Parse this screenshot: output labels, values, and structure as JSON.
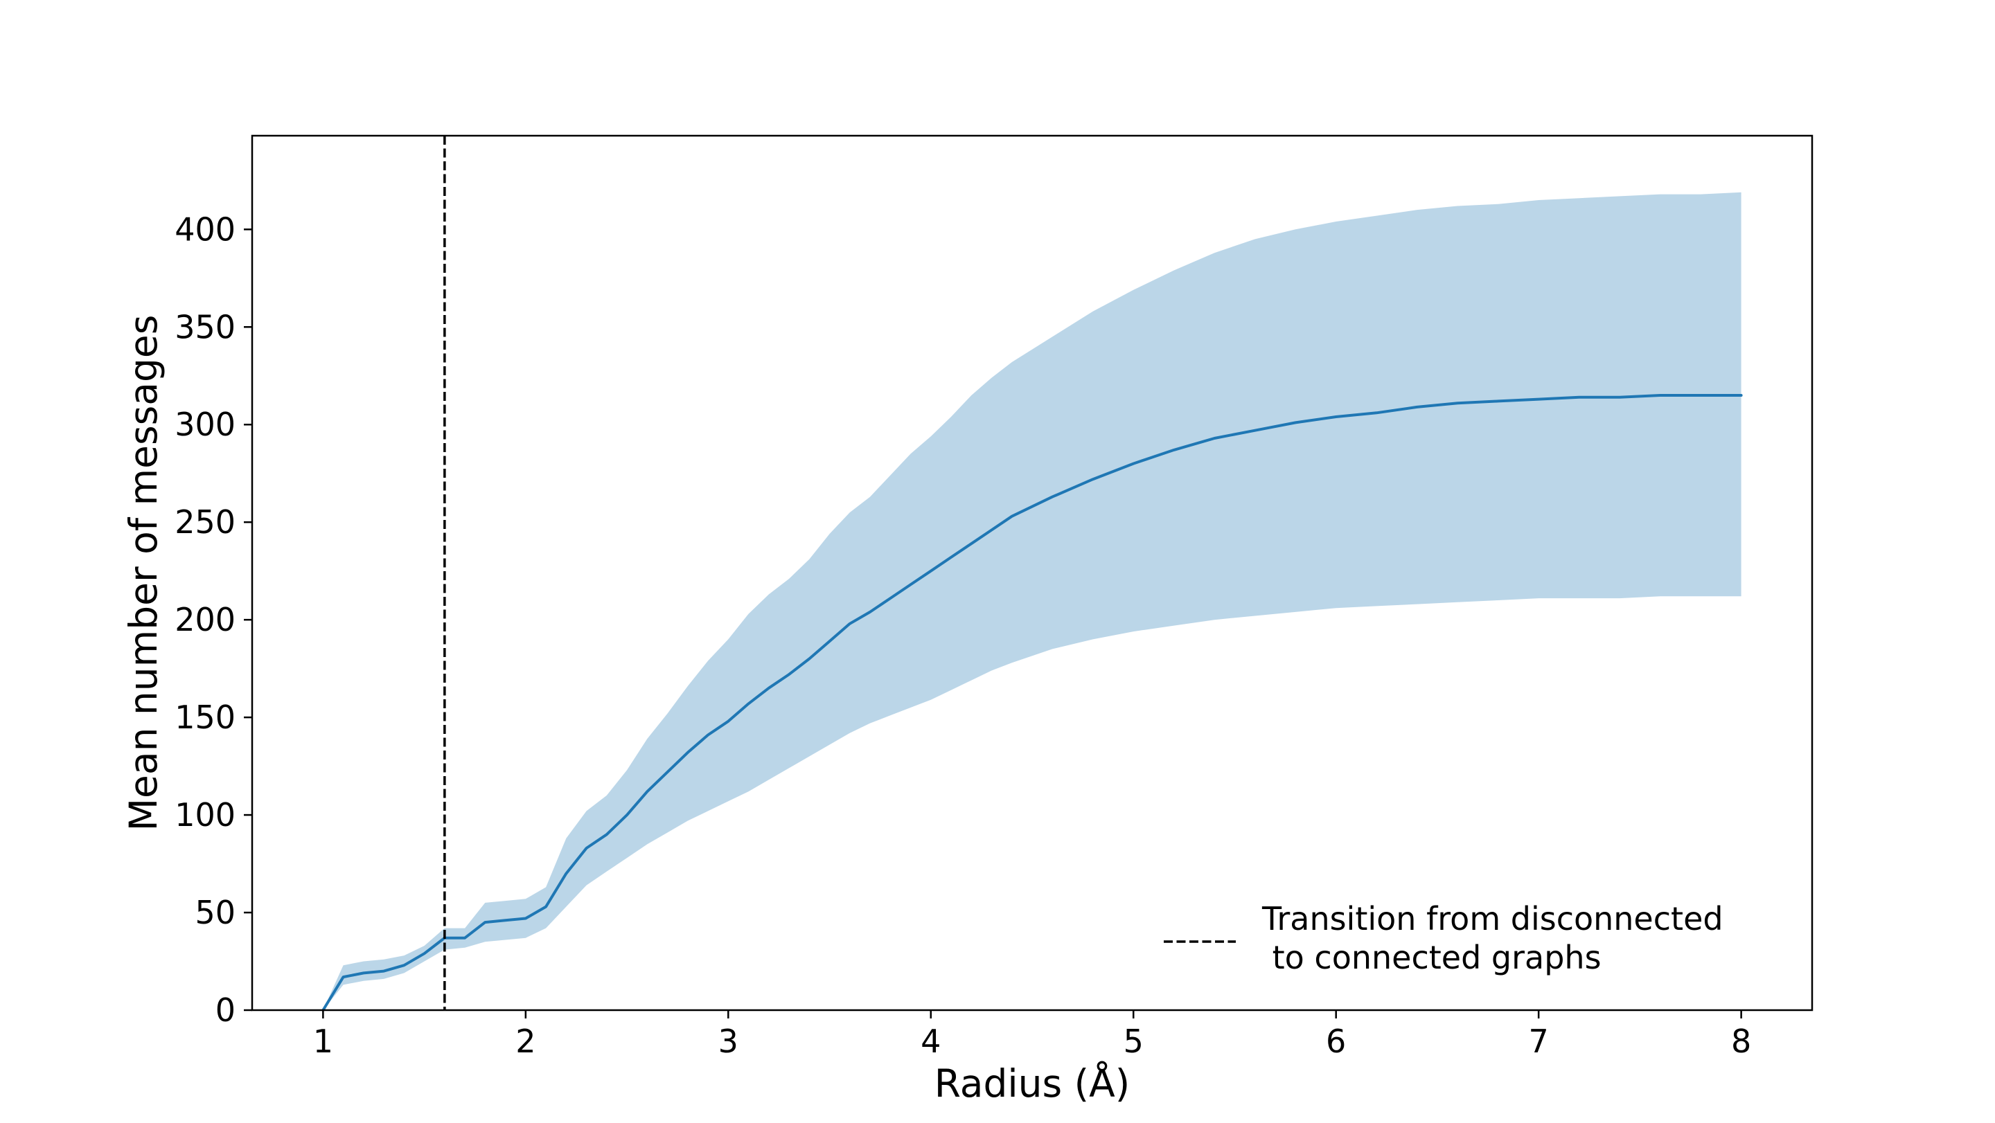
{
  "chart_data": {
    "type": "line",
    "title": "",
    "xlabel": "Radius (Å)",
    "ylabel": "Mean number of messages",
    "xlim": [
      0.65,
      8.35
    ],
    "ylim": [
      0,
      448
    ],
    "xticks": [
      1,
      2,
      3,
      4,
      5,
      6,
      7,
      8
    ],
    "yticks": [
      0,
      50,
      100,
      150,
      200,
      250,
      300,
      350,
      400
    ],
    "grid": false,
    "legend_position": "lower-right",
    "series": [
      {
        "x": [
          1.0,
          1.1,
          1.2,
          1.3,
          1.4,
          1.5,
          1.6,
          1.7,
          1.8,
          1.9,
          2.0,
          2.1,
          2.2,
          2.3,
          2.4,
          2.5,
          2.6,
          2.7,
          2.8,
          2.9,
          3.0,
          3.1,
          3.2,
          3.3,
          3.4,
          3.5,
          3.6,
          3.7,
          3.8,
          3.9,
          4.0,
          4.1,
          4.2,
          4.3,
          4.4,
          4.6,
          4.8,
          5.0,
          5.2,
          5.4,
          5.6,
          5.8,
          6.0,
          6.2,
          6.4,
          6.6,
          6.8,
          7.0,
          7.2,
          7.4,
          7.6,
          7.8,
          8.0
        ],
        "mean": [
          0,
          17,
          19,
          20,
          23,
          29,
          37,
          37,
          45,
          46,
          47,
          53,
          70,
          83,
          90,
          100,
          112,
          122,
          132,
          141,
          148,
          157,
          165,
          172,
          180,
          189,
          198,
          204,
          211,
          218,
          225,
          232,
          239,
          246,
          253,
          263,
          272,
          280,
          287,
          293,
          297,
          301,
          304,
          306,
          309,
          311,
          312,
          313,
          314,
          314,
          315,
          315,
          315
        ],
        "upper": [
          0,
          23,
          25,
          26,
          28,
          33,
          42,
          42,
          55,
          56,
          57,
          63,
          88,
          102,
          110,
          123,
          139,
          152,
          166,
          179,
          190,
          203,
          213,
          221,
          231,
          244,
          255,
          263,
          274,
          285,
          294,
          304,
          315,
          324,
          332,
          345,
          358,
          369,
          379,
          388,
          395,
          400,
          404,
          407,
          410,
          412,
          413,
          415,
          416,
          417,
          418,
          418,
          419
        ],
        "lower": [
          0,
          13,
          15,
          16,
          19,
          25,
          31,
          32,
          35,
          36,
          37,
          42,
          53,
          64,
          71,
          78,
          85,
          91,
          97,
          102,
          107,
          112,
          118,
          124,
          130,
          136,
          142,
          147,
          151,
          155,
          159,
          164,
          169,
          174,
          178,
          185,
          190,
          194,
          197,
          200,
          202,
          204,
          206,
          207,
          208,
          209,
          210,
          211,
          211,
          211,
          212,
          212,
          212
        ],
        "color": "#1f77b4",
        "band_color": "#1f77b4",
        "band_opacity": 0.3
      }
    ],
    "vline": {
      "x": 1.6,
      "style": "dashed",
      "color": "#000000",
      "label": "Transition from disconnected\n to connected graphs",
      "label_line1": "Transition from disconnected",
      "label_line2": " to connected graphs"
    }
  }
}
